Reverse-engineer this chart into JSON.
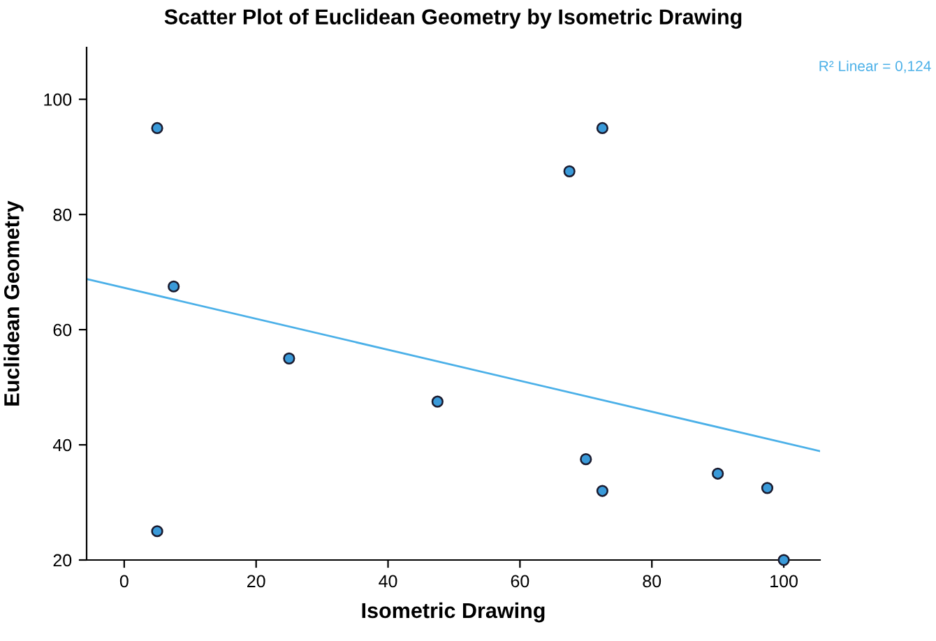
{
  "chart_data": {
    "type": "scatter",
    "title": "Scatter Plot of Euclidean Geometry by Isometric Drawing",
    "xlabel": "Isometric Drawing",
    "ylabel": "Euclidean Geometry",
    "annotations": [
      "R² Linear = 0,124"
    ],
    "xlim": [
      -5.7,
      105.5
    ],
    "ylim": [
      20,
      109
    ],
    "xticks": [
      0,
      20,
      40,
      60,
      80,
      100
    ],
    "yticks": [
      20,
      40,
      60,
      80,
      100
    ],
    "grid": false,
    "legend": false,
    "series": [
      {
        "marker": "circle",
        "color": "#3a9ad9",
        "x": [
          5,
          7.5,
          25,
          47.5,
          5,
          67.5,
          72.5,
          70,
          72.5,
          90,
          97.5,
          100
        ],
        "values": [
          95,
          67.5,
          55,
          47.5,
          25,
          87.5,
          95,
          37.5,
          32,
          35,
          32.5,
          20
        ]
      },
      {
        "type": "line",
        "marker": "none",
        "color": "#4bb0e8",
        "x": [
          -5.7,
          105.5
        ],
        "values": [
          68.8,
          38.9
        ]
      }
    ]
  }
}
